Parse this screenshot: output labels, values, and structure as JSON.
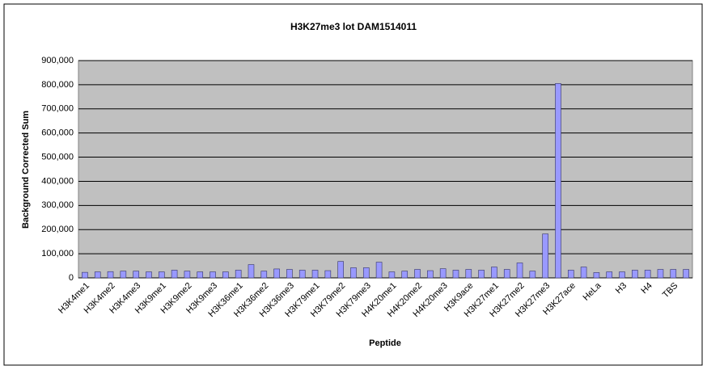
{
  "chart_data": {
    "type": "bar",
    "title": "H3K27me3 lot DAM1514011",
    "x_label": "Peptide",
    "y_label": "Background Corrected Sum",
    "categories": [
      "H3K4me1",
      null,
      "H3K4me2",
      null,
      "H3K4me3",
      null,
      "H3K9me1",
      null,
      "H3K9me2",
      null,
      "H3K9me3",
      null,
      "H3K36me1",
      null,
      "H3K36me2",
      null,
      "H3K36me3",
      null,
      "H3K79me1",
      null,
      "H3K79me2",
      null,
      "H3K79me3",
      null,
      "H4K20me1",
      null,
      "H4K20me2",
      null,
      "H4K20me3",
      null,
      "H3K9ace",
      null,
      "H3K27me1",
      null,
      "H3K27me2",
      null,
      "H3K27me3",
      null,
      "H3K27ace",
      null,
      "HeLa",
      null,
      "H3",
      null,
      "H4",
      null,
      "TBS",
      null
    ],
    "values": [
      23000,
      25000,
      26000,
      28000,
      28000,
      25000,
      25000,
      32000,
      28000,
      25000,
      25000,
      25000,
      32000,
      55000,
      28000,
      37000,
      35000,
      32000,
      32000,
      30000,
      68000,
      42000,
      42000,
      65000,
      25000,
      28000,
      35000,
      30000,
      38000,
      32000,
      35000,
      32000,
      45000,
      35000,
      62000,
      28000,
      182000,
      805000,
      32000,
      45000,
      22000,
      25000,
      25000,
      32000,
      32000,
      35000,
      35000,
      35000
    ],
    "color": "#9999ff",
    "ylim": [
      0,
      900000
    ],
    "yticks": [
      0,
      {
        "value": 100000,
        "label": "100,000"
      },
      {
        "value": 200000,
        "label": "200,000"
      },
      {
        "value": 300000,
        "label": "300,000"
      },
      {
        "value": 400000,
        "label": "400,000"
      },
      {
        "value": 500000,
        "label": "500,000"
      },
      {
        "value": 600000,
        "label": "600,000"
      },
      {
        "value": 700000,
        "label": "700,000"
      },
      {
        "value": 800000,
        "label": "800,000"
      },
      {
        "value": 900000,
        "label": "900,000"
      }
    ],
    "grid": true
  }
}
